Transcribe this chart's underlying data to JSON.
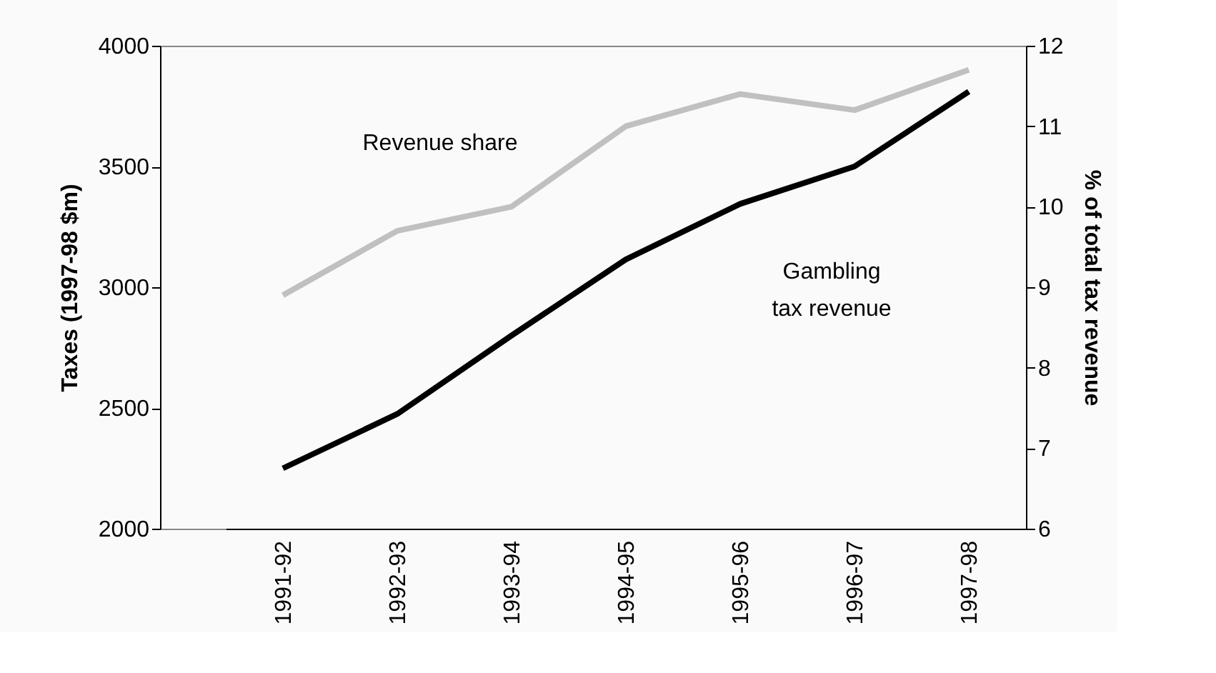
{
  "chart_data": {
    "type": "line",
    "ylabel": "Taxes  (1997-98 $m)",
    "y2label": "% of total tax revenue",
    "categories": [
      "1991-92",
      "1992-93",
      "1993-94",
      "1994-95",
      "1995-96",
      "1996-97",
      "1997-98"
    ],
    "series": [
      {
        "name": "Gambling tax revenue",
        "color": "#000000",
        "values": [
          2250,
          2475,
          2800,
          3115,
          3345,
          3500,
          3810
        ]
      },
      {
        "name": "Revenue share",
        "color": "#c0c0c0",
        "axis": "y2",
        "values": [
          8.9,
          9.7,
          10.0,
          11.0,
          11.4,
          11.2,
          11.7
        ]
      }
    ],
    "ylim": [
      2000,
      4000
    ],
    "yticks": [
      2000,
      2500,
      3000,
      3500,
      4000
    ],
    "y2lim": [
      6,
      12
    ],
    "y2ticks": [
      6,
      7,
      8,
      9,
      10,
      11,
      12
    ],
    "grid": false,
    "legend": false,
    "marker": "none",
    "line_style": "solid"
  }
}
